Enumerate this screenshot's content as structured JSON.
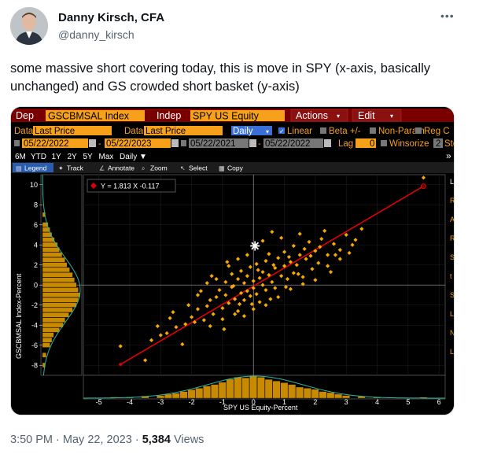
{
  "author": {
    "name": "Danny Kirsch, CFA",
    "handle": "@danny_kirsch",
    "more_icon": "more-horizontal-icon"
  },
  "tweet": {
    "text": "some massive short covering today, this is move in SPY (x-axis, basically unchanged) and GS crowded short basket (y-axis)",
    "time": "3:50 PM",
    "date": "May 22, 2023",
    "views_count": "5,384",
    "views_label": "Views"
  },
  "terminal": {
    "dep_label": "Dep",
    "dep_value": "GSCBMSAL Index",
    "indep_label": "Indep",
    "indep_value": "SPY US Equity",
    "actions": "Actions",
    "edit": "Edit",
    "data_label": "Data",
    "data_value1": "Last Price",
    "data_value2": "Last Price",
    "freq": "Daily",
    "linear": "Linear",
    "beta": "Beta +/-",
    "nonparam": "Non-Param",
    "reg": "Reg C",
    "date1": "05/22/2022",
    "date2": "05/22/2023",
    "date3": "05/22/2021",
    "date4": "05/22/2022",
    "lag_label": "Lag",
    "lag_value": "0",
    "winsorize": "Winsorize",
    "winsorize_value": "2",
    "std_dev": "Std De",
    "periods": [
      "6M",
      "YTD",
      "1Y",
      "2Y",
      "5Y",
      "Max"
    ],
    "period_freq": "Daily",
    "tools": [
      "Legend",
      "Track",
      "Annotate",
      "Zoom",
      "Select",
      "Copy"
    ],
    "equation": "Y = 1.813 X  -0.117"
  },
  "colors": {
    "accent_orange": "#f7a11a",
    "header_red": "#8b0000",
    "point": "#f5a800",
    "hist": "#c88a00",
    "reg_line": "#e00000",
    "curve": "#2fb5a5"
  },
  "chart_data": {
    "type": "scatter",
    "x_label": "SPY US Equity-Percent",
    "y_label": "GSCBMSAL Index-Percent",
    "xlim": [
      -5.5,
      6.2
    ],
    "ylim": [
      -9,
      11
    ],
    "x_ticks": [
      -5,
      -4,
      -3,
      -2,
      -1,
      0,
      1,
      2,
      3,
      4,
      5,
      6
    ],
    "y_ticks": [
      -8,
      -6,
      -4,
      -2,
      0,
      2,
      4,
      6,
      8,
      10
    ],
    "regression": {
      "slope": 1.813,
      "intercept": -0.117,
      "x_range": [
        -4.3,
        5.5
      ]
    },
    "latest_point": [
      0.05,
      3.9
    ],
    "points": [
      [
        -4.3,
        -6.1
      ],
      [
        -3.3,
        -5.5
      ],
      [
        -3.0,
        -5.0
      ],
      [
        -3.5,
        -7.5
      ],
      [
        -2.8,
        -4.8
      ],
      [
        -2.5,
        -4.2
      ],
      [
        -2.2,
        -3.9
      ],
      [
        -2.0,
        -3.2
      ],
      [
        -2.3,
        -5.9
      ],
      [
        -1.8,
        -2.4
      ],
      [
        -1.6,
        -3.5
      ],
      [
        -1.5,
        -2.1
      ],
      [
        -1.4,
        -1.5
      ],
      [
        -1.3,
        -2.9
      ],
      [
        -1.2,
        -1.2
      ],
      [
        -1.1,
        -0.5
      ],
      [
        -1.0,
        -2.3
      ],
      [
        -0.9,
        -1.0
      ],
      [
        -0.9,
        0.3
      ],
      [
        -0.8,
        -1.8
      ],
      [
        -0.7,
        -0.2
      ],
      [
        -0.7,
        1.1
      ],
      [
        -0.6,
        -1.4
      ],
      [
        -0.5,
        0.6
      ],
      [
        -0.5,
        -2.6
      ],
      [
        -0.4,
        -0.8
      ],
      [
        -0.4,
        1.4
      ],
      [
        -0.3,
        0.2
      ],
      [
        -0.3,
        -1.5
      ],
      [
        -0.2,
        0.9
      ],
      [
        -0.2,
        -0.6
      ],
      [
        -0.1,
        1.8
      ],
      [
        -0.1,
        -1.1
      ],
      [
        0.0,
        0.4
      ],
      [
        0.0,
        -0.3
      ],
      [
        0.1,
        2.1
      ],
      [
        0.1,
        -0.9
      ],
      [
        0.2,
        0.7
      ],
      [
        0.2,
        -1.7
      ],
      [
        0.3,
        1.3
      ],
      [
        0.3,
        0.0
      ],
      [
        0.4,
        2.4
      ],
      [
        0.4,
        -0.5
      ],
      [
        0.5,
        1.0
      ],
      [
        0.5,
        3.1
      ],
      [
        0.6,
        0.3
      ],
      [
        0.7,
        1.7
      ],
      [
        0.7,
        -0.3
      ],
      [
        0.8,
        2.7
      ],
      [
        0.9,
        0.9
      ],
      [
        1.0,
        1.9
      ],
      [
        1.0,
        3.3
      ],
      [
        1.1,
        0.6
      ],
      [
        1.2,
        2.3
      ],
      [
        1.3,
        1.2
      ],
      [
        1.3,
        3.9
      ],
      [
        1.4,
        2.0
      ],
      [
        1.5,
        3.0
      ],
      [
        1.6,
        0.8
      ],
      [
        1.7,
        2.6
      ],
      [
        1.8,
        4.3
      ],
      [
        1.9,
        1.6
      ],
      [
        2.0,
        3.4
      ],
      [
        2.1,
        2.2
      ],
      [
        2.2,
        4.6
      ],
      [
        2.4,
        3.0
      ],
      [
        2.5,
        1.3
      ],
      [
        2.6,
        4.1
      ],
      [
        2.8,
        3.5
      ],
      [
        3.0,
        5.0
      ],
      [
        3.1,
        3.2
      ],
      [
        3.3,
        4.5
      ],
      [
        3.5,
        5.6
      ],
      [
        2.3,
        5.4
      ],
      [
        1.5,
        5.1
      ],
      [
        0.9,
        4.7
      ],
      [
        0.6,
        5.3
      ],
      [
        0.3,
        4.4
      ],
      [
        -0.2,
        3.0
      ],
      [
        -0.5,
        2.6
      ],
      [
        -0.8,
        1.9
      ],
      [
        -1.2,
        0.6
      ],
      [
        -1.5,
        0.2
      ],
      [
        -1.8,
        -1.0
      ],
      [
        -2.1,
        -2.0
      ],
      [
        -2.6,
        -2.7
      ],
      [
        -1.9,
        -3.7
      ],
      [
        -1.4,
        -4.1
      ],
      [
        -1.0,
        -3.4
      ],
      [
        -0.6,
        -2.9
      ],
      [
        -0.3,
        -3.1
      ],
      [
        0.0,
        -2.4
      ],
      [
        0.4,
        -2.0
      ],
      [
        0.8,
        -1.2
      ],
      [
        1.2,
        -0.4
      ],
      [
        1.6,
        0.1
      ],
      [
        2.0,
        0.5
      ],
      [
        2.4,
        1.9
      ],
      [
        2.8,
        2.6
      ],
      [
        -2.7,
        -3.3
      ],
      [
        -3.1,
        -4.1
      ],
      [
        -0.95,
        -4.4
      ],
      [
        -0.05,
        -1.9
      ],
      [
        0.55,
        -1.4
      ],
      [
        1.05,
        -0.2
      ],
      [
        1.45,
        1.1
      ],
      [
        1.85,
        2.9
      ],
      [
        -1.7,
        -0.6
      ],
      [
        -1.35,
        0.9
      ],
      [
        -0.65,
        -0.1
      ],
      [
        0.15,
        1.5
      ],
      [
        0.65,
        2.0
      ],
      [
        1.15,
        2.8
      ],
      [
        1.65,
        3.6
      ],
      [
        2.15,
        3.8
      ],
      [
        2.65,
        3.0
      ],
      [
        3.2,
        4.0
      ],
      [
        -0.85,
        2.3
      ],
      [
        -0.45,
        -1.9
      ],
      [
        5.5,
        10.7
      ]
    ],
    "x_hist": [
      [
        -4.5,
        0.05
      ],
      [
        -4.0,
        0.05
      ],
      [
        -3.5,
        0.1
      ],
      [
        -3.0,
        0.12
      ],
      [
        -2.75,
        0.18
      ],
      [
        -2.5,
        0.22
      ],
      [
        -2.25,
        0.3
      ],
      [
        -2.0,
        0.38
      ],
      [
        -1.75,
        0.45
      ],
      [
        -1.5,
        0.55
      ],
      [
        -1.25,
        0.62
      ],
      [
        -1.0,
        0.72
      ],
      [
        -0.75,
        0.86
      ],
      [
        -0.5,
        0.95
      ],
      [
        -0.25,
        0.92
      ],
      [
        0.0,
        1.0
      ],
      [
        0.25,
        0.95
      ],
      [
        0.5,
        0.85
      ],
      [
        0.75,
        0.78
      ],
      [
        1.0,
        0.7
      ],
      [
        1.25,
        0.62
      ],
      [
        1.5,
        0.5
      ],
      [
        1.75,
        0.45
      ],
      [
        2.0,
        0.4
      ],
      [
        2.25,
        0.3
      ],
      [
        2.5,
        0.25
      ],
      [
        2.75,
        0.18
      ],
      [
        3.0,
        0.12
      ],
      [
        3.5,
        0.08
      ],
      [
        4.0,
        0.05
      ],
      [
        5.5,
        0.04
      ]
    ],
    "y_hist": [
      [
        -8,
        0.08
      ],
      [
        -7,
        0.1
      ],
      [
        -6,
        0.2
      ],
      [
        -5.5,
        0.25
      ],
      [
        -5,
        0.3
      ],
      [
        -4.5,
        0.45
      ],
      [
        -4,
        0.55
      ],
      [
        -3.5,
        0.6
      ],
      [
        -3,
        0.7
      ],
      [
        -2.5,
        0.8
      ],
      [
        -2,
        0.9
      ],
      [
        -1.5,
        0.95
      ],
      [
        -1,
        1.0
      ],
      [
        -0.5,
        0.95
      ],
      [
        0,
        0.9
      ],
      [
        0.5,
        0.85
      ],
      [
        1,
        0.8
      ],
      [
        1.5,
        0.72
      ],
      [
        2,
        0.65
      ],
      [
        2.5,
        0.6
      ],
      [
        3,
        0.52
      ],
      [
        3.5,
        0.45
      ],
      [
        4,
        0.4
      ],
      [
        4.5,
        0.32
      ],
      [
        5,
        0.25
      ],
      [
        5.5,
        0.2
      ],
      [
        6,
        0.15
      ],
      [
        7,
        0.08
      ]
    ]
  }
}
